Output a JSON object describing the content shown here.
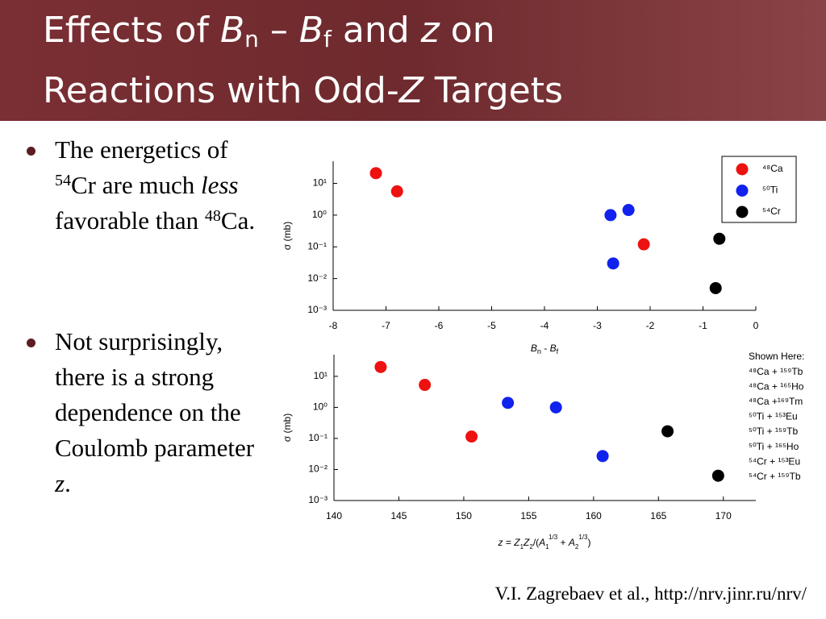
{
  "slide": {
    "title": [
      "Effects of ",
      "B",
      "n",
      " – ",
      "B",
      "f",
      " and ",
      "z",
      " on",
      "Reactions with Odd-",
      "Z",
      " Targets"
    ],
    "bullets": [
      [
        "The energetics of ",
        "54",
        "Cr are much ",
        "less",
        " favorable than ",
        "48",
        "Ca."
      ],
      [
        "Not surprisingly, there is a strong dependence on the Coulomb parameter ",
        "z",
        "."
      ]
    ],
    "citation": "V.I. Zagrebaev et al., http://nrv.jinr.ru/nrv/"
  },
  "chart_data": [
    {
      "type": "scatter",
      "log_y": true,
      "legend": "upper right",
      "xlabel": [
        "B",
        "n",
        " - ",
        "B",
        "f"
      ],
      "ylabel": "σ (mb)",
      "xlim": [
        -8,
        0
      ],
      "xticks": [
        -8,
        -7,
        -6,
        -5,
        -4,
        -3,
        -2,
        -1,
        0
      ],
      "ylim": [
        0.001,
        50
      ],
      "yticks": [
        {
          "value": 0.001,
          "label": "10⁻³"
        },
        {
          "value": 0.01,
          "label": "10⁻²"
        },
        {
          "value": 0.1,
          "label": "10⁻¹"
        },
        {
          "value": 1,
          "label": "10⁰"
        },
        {
          "value": 10,
          "label": "10¹"
        }
      ],
      "series": [
        {
          "name": "⁴⁸Ca",
          "color": "#ee1111",
          "x": [
            -7.19,
            -6.79,
            -2.12
          ],
          "values": [
            21,
            5.6,
            0.12
          ]
        },
        {
          "name": "⁵⁰Ti",
          "color": "#1122ee",
          "x": [
            -2.75,
            -2.41,
            -2.7
          ],
          "values": [
            1.0,
            1.45,
            0.03
          ]
        },
        {
          "name": "⁵⁴Cr",
          "color": "#000000",
          "x": [
            -0.69,
            -0.76
          ],
          "values": [
            0.18,
            0.005
          ]
        }
      ]
    },
    {
      "type": "scatter",
      "log_y": true,
      "xlabel": [
        "z",
        " = ",
        "Z",
        "1",
        "Z",
        "2",
        "/(",
        "A",
        "1",
        "1/3",
        " + ",
        "A",
        "2",
        "1/3",
        ")"
      ],
      "ylabel": "σ (mb)",
      "xlim": [
        140,
        172.5
      ],
      "xticks": [
        140,
        145,
        150,
        155,
        160,
        165,
        170
      ],
      "ylim": [
        0.001,
        50
      ],
      "yticks": [
        {
          "value": 0.001,
          "label": "10⁻³"
        },
        {
          "value": 0.01,
          "label": "10⁻²"
        },
        {
          "value": 0.1,
          "label": "10⁻¹"
        },
        {
          "value": 1,
          "label": "10⁰"
        },
        {
          "value": 10,
          "label": "10¹"
        }
      ],
      "annotations": [
        "Shown Here:",
        "⁴⁸Ca + ¹⁵⁹Tb",
        "⁴⁸Ca + ¹⁶⁵Ho",
        "⁴⁸Ca +¹⁶⁹Tm",
        "⁵⁰Ti + ¹⁵³Eu",
        "⁵⁰Ti + ¹⁵⁹Tb",
        "⁵⁰Ti + ¹⁶⁵Ho",
        "⁵⁴Cr + ¹⁵³Eu",
        "⁵⁴Cr + ¹⁵⁹Tb"
      ],
      "series": [
        {
          "color": "#ee1111",
          "x": [
            143.6,
            147.0,
            150.6
          ],
          "values": [
            20,
            5.3,
            0.115
          ]
        },
        {
          "color": "#1122ee",
          "x": [
            153.4,
            157.1,
            160.7
          ],
          "values": [
            1.4,
            1.0,
            0.027
          ]
        },
        {
          "color": "#000000",
          "x": [
            165.7,
            169.6
          ],
          "values": [
            0.17,
            0.0063
          ]
        }
      ]
    }
  ]
}
